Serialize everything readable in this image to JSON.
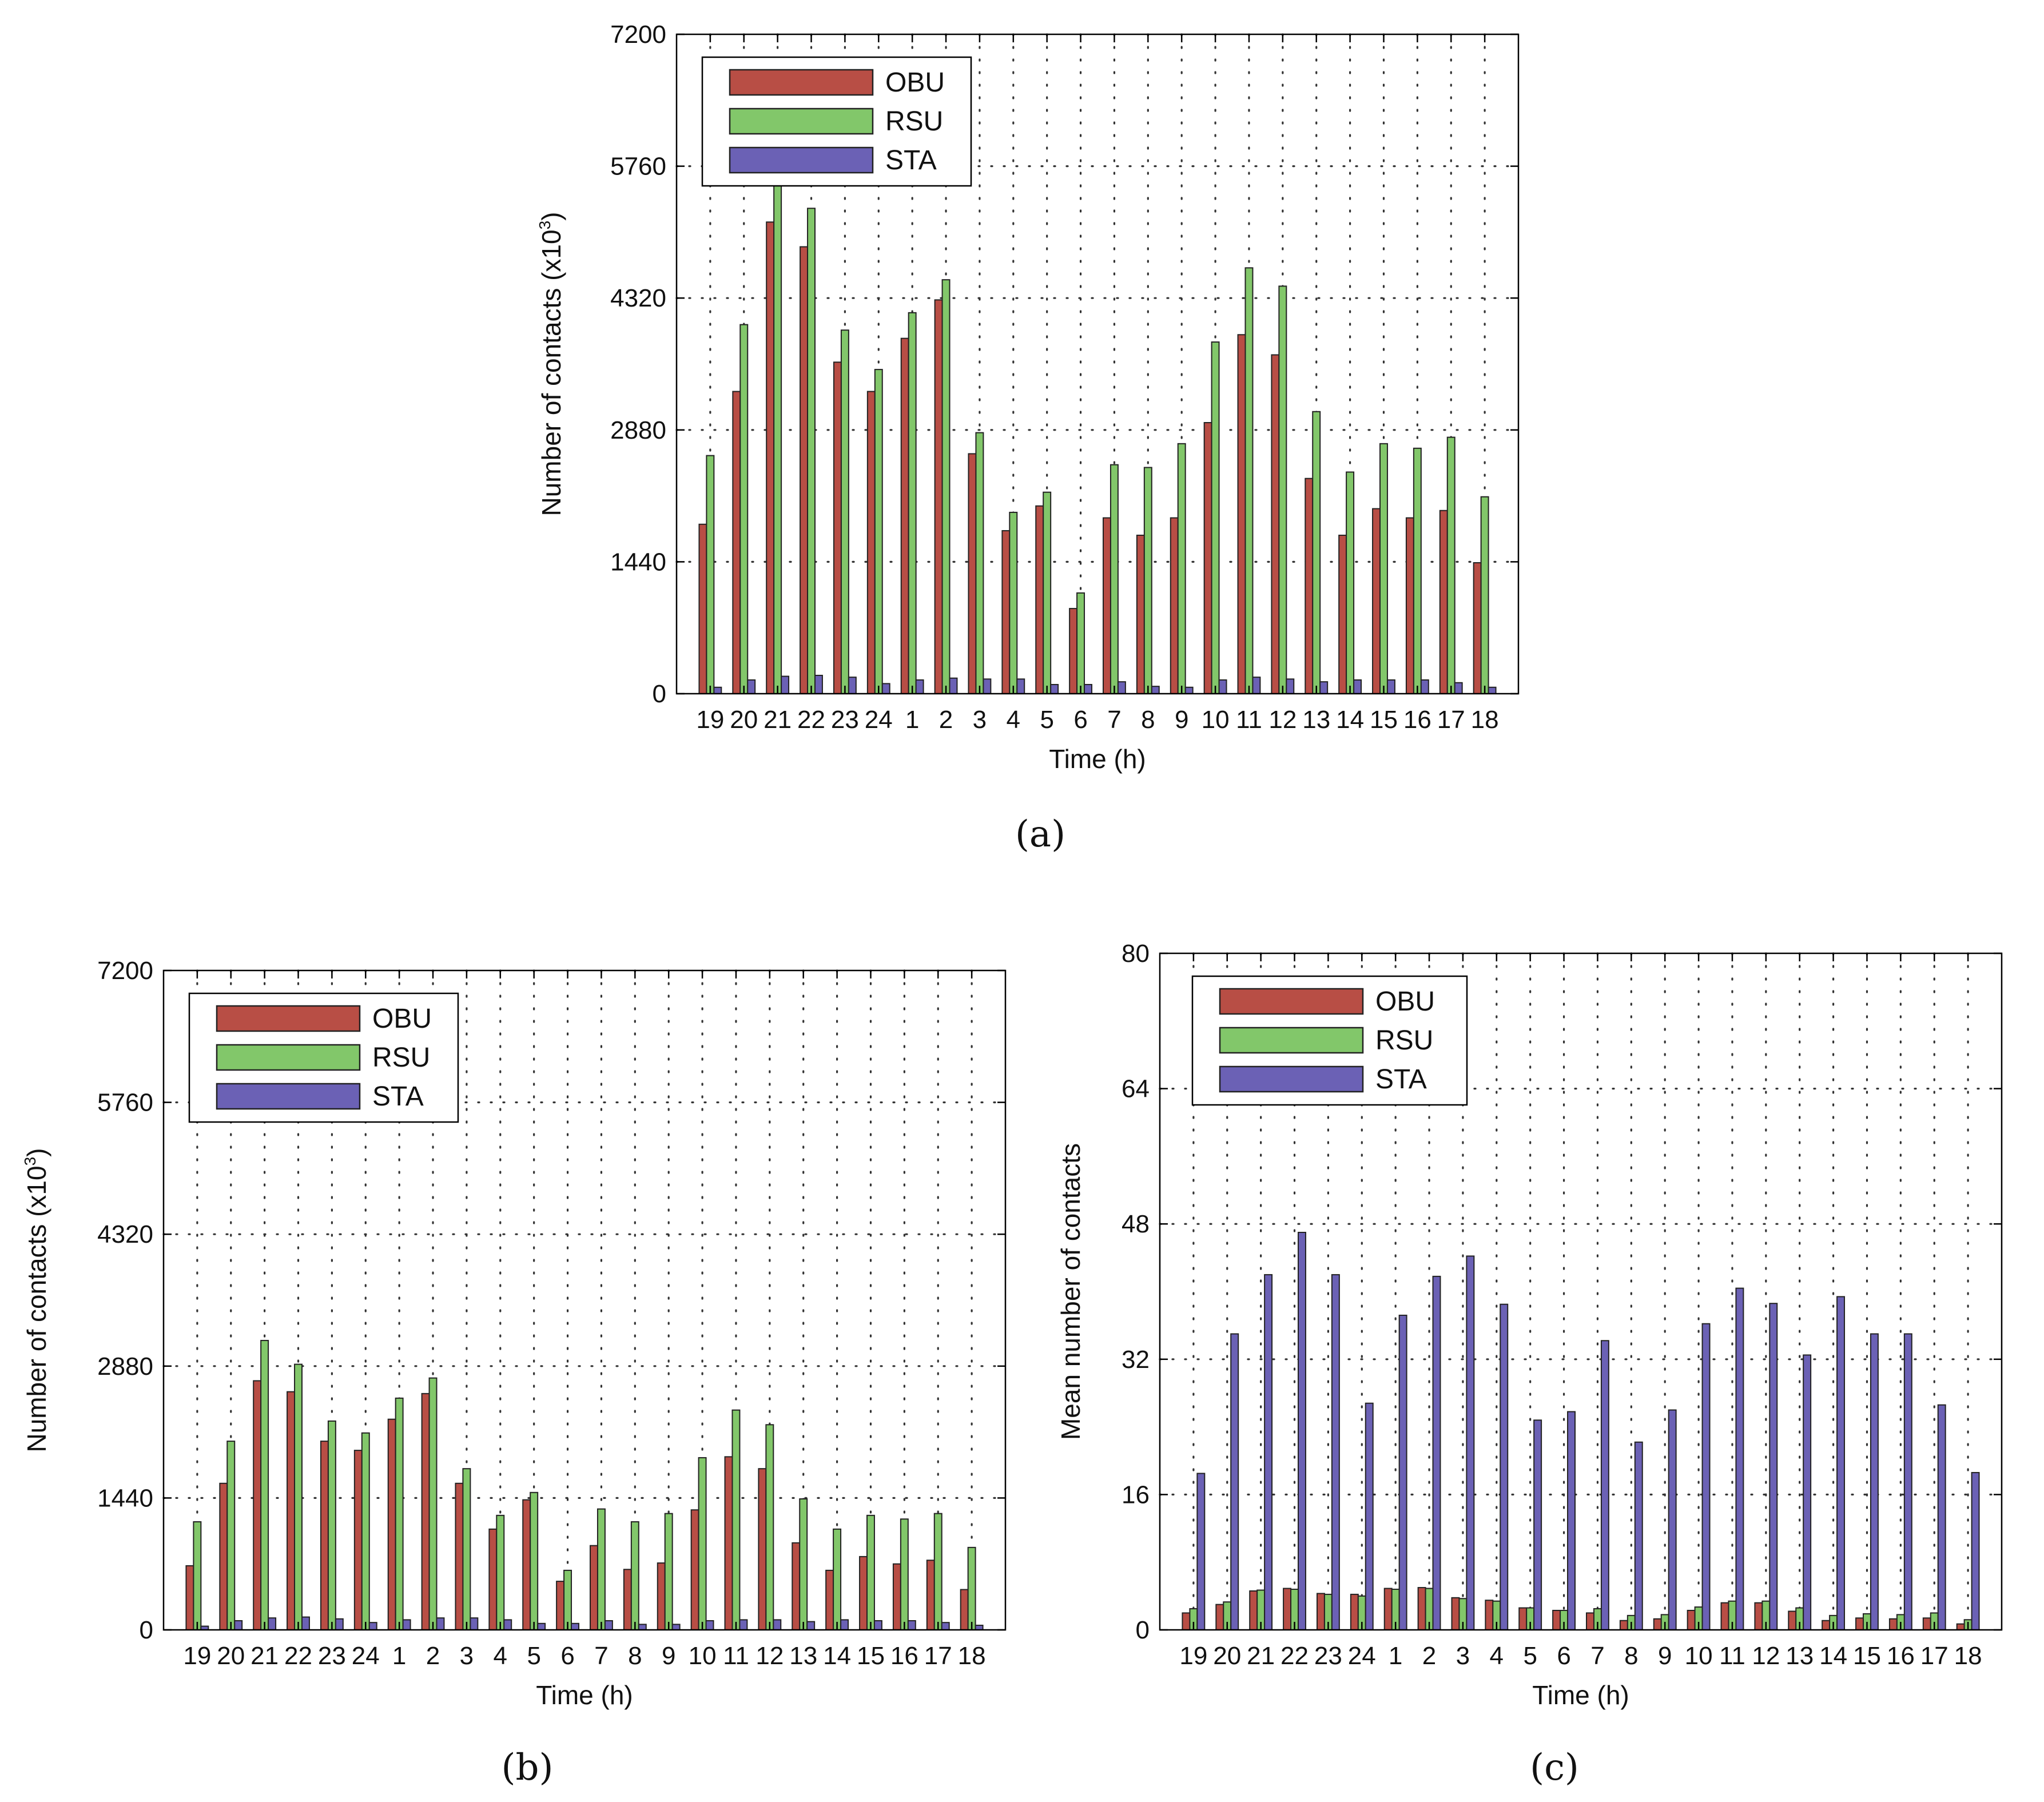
{
  "colors": {
    "OBU": "#b84e45",
    "RSU": "#82c76a",
    "STA": "#6b61b5"
  },
  "chart_data": [
    {
      "panel_label": "(a)",
      "type": "bar",
      "xlabel": "Time (h)",
      "ylabel": "Number of contacts (x10",
      "ylabel_exp": "3",
      "ylabel_close": ")",
      "ylim": [
        0,
        7200
      ],
      "yticks": [
        "0",
        "1440",
        "2880",
        "4320",
        "5760",
        "7200"
      ],
      "grid": true,
      "legend_position": "top-left",
      "categories": [
        "19",
        "20",
        "21",
        "22",
        "23",
        "24",
        "1",
        "2",
        "3",
        "4",
        "5",
        "6",
        "7",
        "8",
        "9",
        "10",
        "11",
        "12",
        "13",
        "14",
        "15",
        "16",
        "17",
        "18"
      ],
      "series": [
        {
          "name": "OBU",
          "values": [
            1850,
            3300,
            5150,
            4880,
            3620,
            3300,
            3880,
            4300,
            2620,
            1780,
            2050,
            930,
            1920,
            1730,
            1920,
            2960,
            3920,
            3700,
            2350,
            1730,
            2020,
            1920,
            2000,
            1430
          ]
        },
        {
          "name": "RSU",
          "values": [
            2600,
            4030,
            5800,
            5300,
            3970,
            3540,
            4160,
            4520,
            2850,
            1980,
            2200,
            1100,
            2500,
            2470,
            2730,
            3840,
            4650,
            4450,
            3080,
            2420,
            2730,
            2680,
            2800,
            2150
          ]
        },
        {
          "name": "STA",
          "values": [
            70,
            150,
            190,
            200,
            180,
            110,
            150,
            170,
            160,
            160,
            100,
            100,
            130,
            80,
            70,
            150,
            180,
            160,
            130,
            150,
            150,
            150,
            120,
            70
          ]
        }
      ]
    },
    {
      "panel_label": "(b)",
      "type": "bar",
      "xlabel": "Time (h)",
      "ylabel": "Number of contacts (x10",
      "ylabel_exp": "3",
      "ylabel_close": ")",
      "ylim": [
        0,
        7200
      ],
      "yticks": [
        "0",
        "1440",
        "2880",
        "4320",
        "5760",
        "7200"
      ],
      "grid": true,
      "legend_position": "top-left",
      "categories": [
        "19",
        "20",
        "21",
        "22",
        "23",
        "24",
        "1",
        "2",
        "3",
        "4",
        "5",
        "6",
        "7",
        "8",
        "9",
        "10",
        "11",
        "12",
        "13",
        "14",
        "15",
        "16",
        "17",
        "18"
      ],
      "series": [
        {
          "name": "OBU",
          "values": [
            700,
            1600,
            2720,
            2600,
            2060,
            1960,
            2300,
            2580,
            1600,
            1100,
            1420,
            530,
            920,
            660,
            730,
            1310,
            1890,
            1760,
            950,
            650,
            800,
            720,
            760,
            440
          ]
        },
        {
          "name": "RSU",
          "values": [
            1180,
            2060,
            3160,
            2900,
            2280,
            2150,
            2530,
            2750,
            1760,
            1250,
            1500,
            650,
            1320,
            1180,
            1270,
            1880,
            2400,
            2240,
            1430,
            1100,
            1250,
            1210,
            1270,
            900
          ]
        },
        {
          "name": "STA",
          "values": [
            40,
            100,
            130,
            140,
            120,
            80,
            110,
            130,
            130,
            110,
            70,
            70,
            100,
            60,
            60,
            100,
            110,
            110,
            90,
            110,
            100,
            100,
            80,
            50
          ]
        }
      ]
    },
    {
      "panel_label": "(c)",
      "type": "bar",
      "xlabel": "Time (h)",
      "ylabel": "Mean number of contacts",
      "ylabel_exp": "",
      "ylabel_close": "",
      "ylim": [
        0,
        80
      ],
      "yticks": [
        "0",
        "16",
        "32",
        "48",
        "64",
        "80"
      ],
      "grid": true,
      "legend_position": "top-left",
      "categories": [
        "19",
        "20",
        "21",
        "22",
        "23",
        "24",
        "1",
        "2",
        "3",
        "4",
        "5",
        "6",
        "7",
        "8",
        "9",
        "10",
        "11",
        "12",
        "13",
        "14",
        "15",
        "16",
        "17",
        "18"
      ],
      "series": [
        {
          "name": "OBU",
          "values": [
            2.0,
            3.0,
            4.6,
            4.9,
            4.3,
            4.2,
            4.9,
            5.0,
            3.8,
            3.5,
            2.6,
            2.3,
            2.0,
            1.1,
            1.3,
            2.3,
            3.2,
            3.2,
            2.2,
            1.1,
            1.4,
            1.3,
            1.4,
            0.7
          ]
        },
        {
          "name": "RSU",
          "values": [
            2.5,
            3.3,
            4.7,
            4.8,
            4.2,
            4.0,
            4.8,
            4.9,
            3.7,
            3.4,
            2.6,
            2.3,
            2.5,
            1.7,
            1.8,
            2.7,
            3.4,
            3.4,
            2.6,
            1.7,
            1.9,
            1.8,
            2.0,
            1.2
          ]
        },
        {
          "name": "STA",
          "values": [
            18.5,
            35.0,
            42.0,
            47.0,
            42.0,
            26.8,
            37.2,
            41.8,
            44.2,
            38.5,
            24.8,
            25.8,
            34.2,
            22.2,
            26.0,
            36.2,
            40.4,
            38.6,
            32.5,
            39.4,
            35.0,
            35.0,
            26.6,
            18.6
          ]
        }
      ]
    }
  ]
}
